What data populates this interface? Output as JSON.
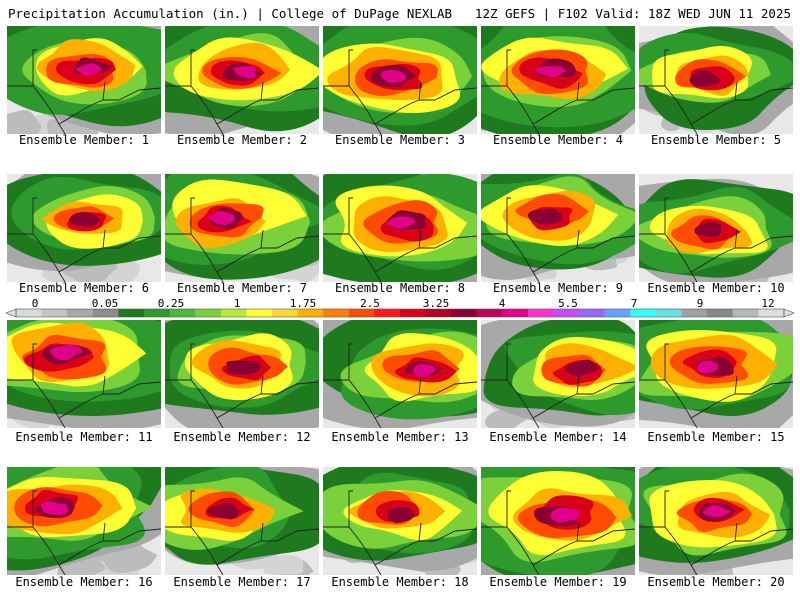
{
  "header": {
    "left": "Precipitation Accumulation (in.) | College of DuPage NEXLAB",
    "right": "12Z GEFS | F102 Valid: 18Z WED JUN 11 2025"
  },
  "members": [
    {
      "label": "Ensemble Member: 1"
    },
    {
      "label": "Ensemble Member: 2"
    },
    {
      "label": "Ensemble Member: 3"
    },
    {
      "label": "Ensemble Member: 4"
    },
    {
      "label": "Ensemble Member: 5"
    },
    {
      "label": "Ensemble Member: 6"
    },
    {
      "label": "Ensemble Member: 7"
    },
    {
      "label": "Ensemble Member: 8"
    },
    {
      "label": "Ensemble Member: 9"
    },
    {
      "label": "Ensemble Member: 10"
    },
    {
      "label": "Ensemble Member: 11"
    },
    {
      "label": "Ensemble Member: 12"
    },
    {
      "label": "Ensemble Member: 13"
    },
    {
      "label": "Ensemble Member: 14"
    },
    {
      "label": "Ensemble Member: 15"
    },
    {
      "label": "Ensemble Member: 16"
    },
    {
      "label": "Ensemble Member: 17"
    },
    {
      "label": "Ensemble Member: 18"
    },
    {
      "label": "Ensemble Member: 19"
    },
    {
      "label": "Ensemble Member: 20"
    }
  ],
  "colorbar": {
    "labels": [
      "0",
      "0.05",
      "0.25",
      "1",
      "1.75",
      "2.5",
      "3.25",
      "4",
      "5.5",
      "7",
      "9",
      "12"
    ],
    "colors": [
      "#d9d9d9",
      "#c4c4c4",
      "#a8a8a8",
      "#8c8c8c",
      "#1f7a1f",
      "#2e9a2e",
      "#4fb83a",
      "#7ad13a",
      "#b7e83a",
      "#ffff33",
      "#ffd633",
      "#ffb000",
      "#ff8000",
      "#ff4c00",
      "#ff1a1a",
      "#d9001a",
      "#b00026",
      "#8a0033",
      "#c0005a",
      "#e0008a",
      "#ff33cc",
      "#c84cff",
      "#9966ff",
      "#66a3ff",
      "#33ffff",
      "#66e0e0",
      "#a0a0a0",
      "#888888",
      "#b8b8b8",
      "#dddddd"
    ]
  }
}
